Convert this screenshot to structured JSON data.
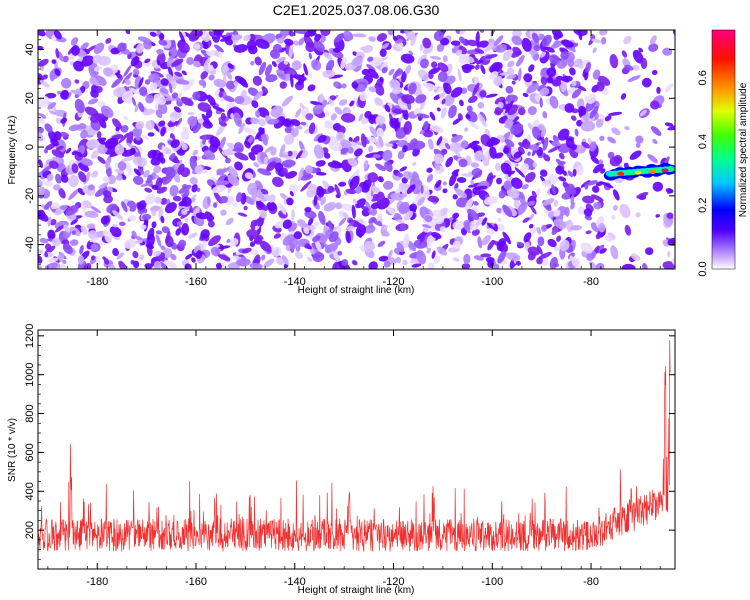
{
  "title": "C2E1.2025.037.08.06.G30",
  "colors": {
    "spectrogram_noise": "#7a1cf0",
    "snr_line": "#f03030",
    "background": "#ffffff"
  },
  "chart_data": [
    {
      "type": "heatmap",
      "xlabel": "Height of straight line (km)",
      "ylabel": "Frequency (Hz)",
      "xlim": [
        -192,
        -63
      ],
      "ylim": [
        -50,
        48
      ],
      "xticks": [
        -180,
        -160,
        -140,
        -120,
        -100,
        -80
      ],
      "yticks": [
        -40,
        -20,
        0,
        20,
        40
      ],
      "colorbar": {
        "label": "Normalized spectral amplitude",
        "range": [
          0,
          0.75
        ],
        "ticks": [
          0.0,
          0.2,
          0.4,
          0.6
        ],
        "colormap": "rainbow"
      },
      "feature": {
        "x_start": -76,
        "x_end": -64,
        "frequency_start": -11,
        "frequency_end": -9,
        "peak_amplitude": 0.75
      },
      "grid": false
    },
    {
      "type": "line",
      "xlabel": "Height of straight line (km)",
      "ylabel": "SNR (10 * v/v)",
      "xlim": [
        -192,
        -63
      ],
      "ylim": [
        0,
        1230
      ],
      "xticks": [
        -180,
        -160,
        -140,
        -120,
        -100,
        -80
      ],
      "yticks": [
        200,
        400,
        600,
        800,
        1000,
        1200
      ],
      "series": [
        {
          "color": "#f03030",
          "baseline": 175,
          "peaks": [
            {
              "x": -185.5,
              "value": 685
            },
            {
              "x": -156,
              "value": 530
            },
            {
              "x": -149,
              "value": 450
            },
            {
              "x": -129,
              "value": 480
            },
            {
              "x": -112,
              "value": 470
            },
            {
              "x": -98,
              "value": 460
            },
            {
              "x": -72,
              "value": 550
            },
            {
              "x": -65,
              "value": 1110
            },
            {
              "x": -64,
              "value": 1230
            }
          ]
        }
      ],
      "grid": false
    }
  ]
}
